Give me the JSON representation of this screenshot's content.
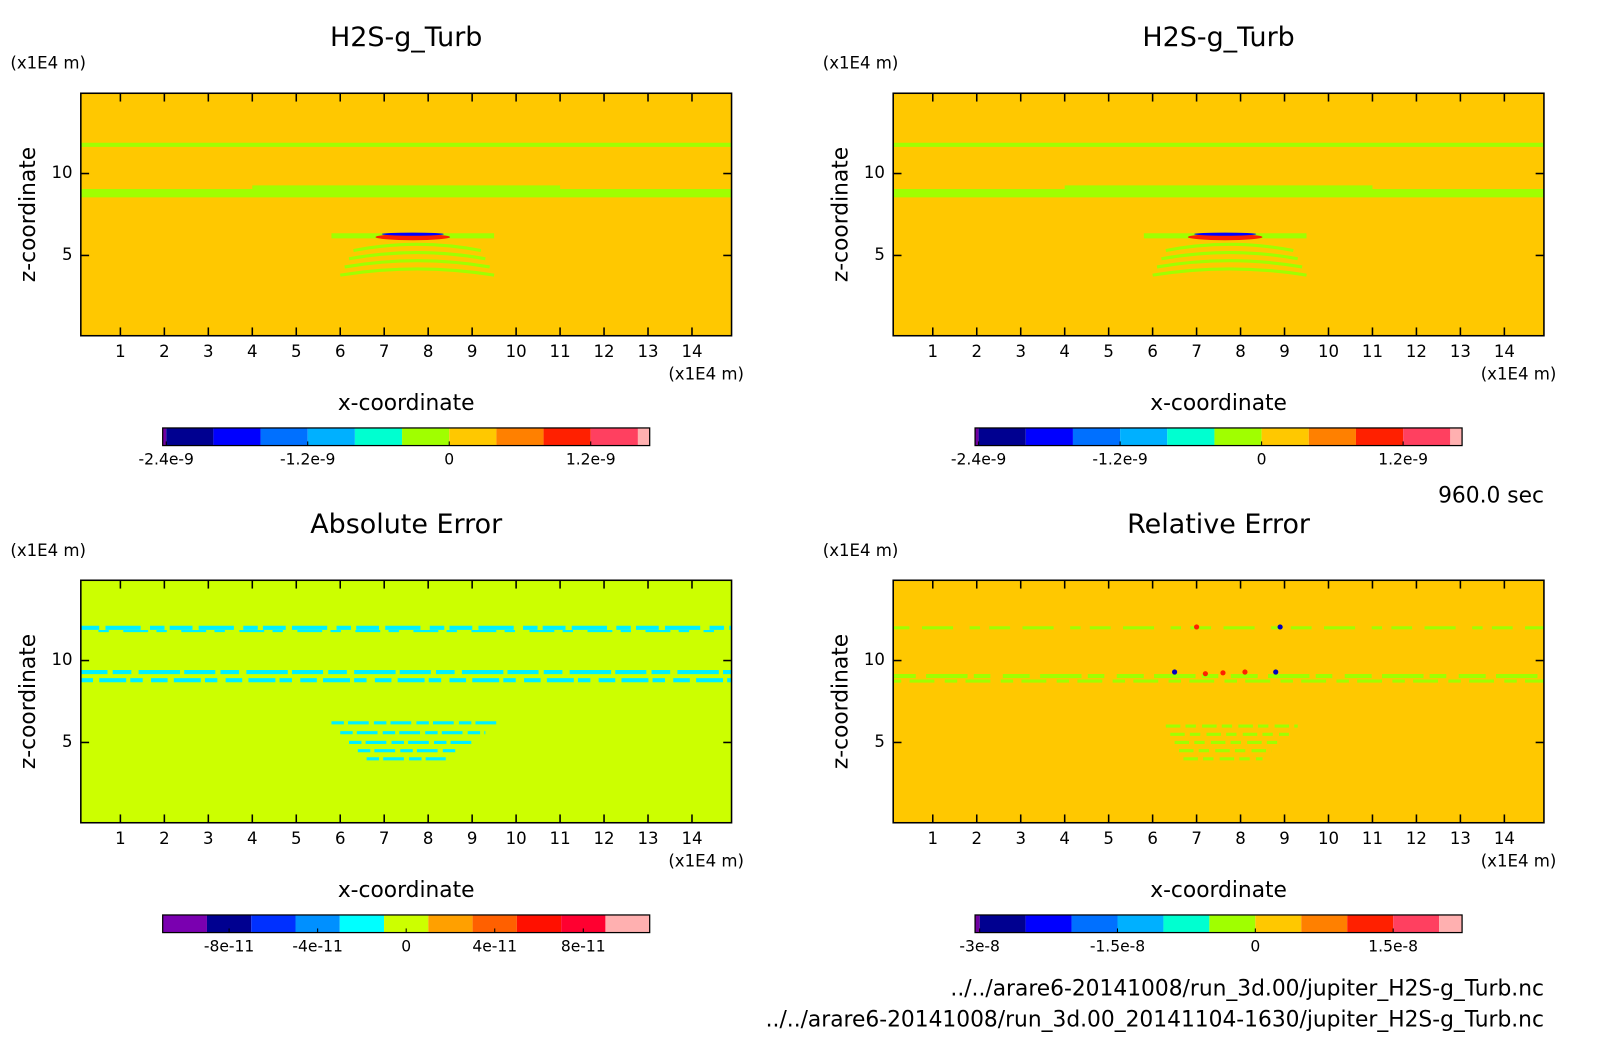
{
  "chart_data": [
    {
      "type": "contour",
      "title": "H2S-g_Turb",
      "xlabel": "x-coordinate",
      "ylabel": "z-coordinate",
      "xunit": "(x1E4 m)",
      "yunit": "(x1E4 m)",
      "xlim": [
        0.1,
        14.9
      ],
      "ylim": [
        0.1,
        14.9
      ],
      "xticks": [
        1,
        2,
        3,
        4,
        5,
        6,
        7,
        8,
        9,
        10,
        11,
        12,
        13,
        14
      ],
      "yticks": [
        5,
        10
      ],
      "background": "#ffc800",
      "colorbar": {
        "levels": [
          -2.43e-09,
          -2.4e-09,
          -2e-09,
          -1.6e-09,
          -1.2e-09,
          -8e-10,
          -4e-10,
          0,
          4e-10,
          8e-10,
          1.2e-09,
          1.6e-09,
          1.7e-09
        ],
        "colors": [
          "#7000a0",
          "#000090",
          "#0000ff",
          "#0070ff",
          "#00b0ff",
          "#00ffd0",
          "#a0ff00",
          "#ffc800",
          "#ff8000",
          "#ff2000",
          "#ff4060",
          "#ffb0b0"
        ],
        "ticks": [
          {
            "value": -2.4e-09,
            "label": "-2.4e-9"
          },
          {
            "value": -1.2e-09,
            "label": "-1.2e-9"
          },
          0,
          {
            "value": 1.2e-09,
            "label": "1.2e-9"
          }
        ]
      }
    },
    {
      "type": "contour",
      "title": "H2S-g_Turb",
      "xlabel": "x-coordinate",
      "ylabel": "z-coordinate",
      "xunit": "(x1E4 m)",
      "yunit": "(x1E4 m)",
      "xlim": [
        0.1,
        14.9
      ],
      "ylim": [
        0.1,
        14.9
      ],
      "xticks": [
        1,
        2,
        3,
        4,
        5,
        6,
        7,
        8,
        9,
        10,
        11,
        12,
        13,
        14
      ],
      "yticks": [
        5,
        10
      ],
      "background": "#ffc800",
      "colorbar": {
        "levels": [
          -2.43e-09,
          -2.4e-09,
          -2e-09,
          -1.6e-09,
          -1.2e-09,
          -8e-10,
          -4e-10,
          0,
          4e-10,
          8e-10,
          1.2e-09,
          1.6e-09,
          1.7e-09
        ],
        "colors": [
          "#7000a0",
          "#000090",
          "#0000ff",
          "#0070ff",
          "#00b0ff",
          "#00ffd0",
          "#a0ff00",
          "#ffc800",
          "#ff8000",
          "#ff2000",
          "#ff4060",
          "#ffb0b0"
        ],
        "ticks": [
          {
            "value": -2.4e-09,
            "label": "-2.4e-9"
          },
          {
            "value": -1.2e-09,
            "label": "-1.2e-9"
          },
          0,
          {
            "value": 1.2e-09,
            "label": "1.2e-9"
          }
        ]
      }
    },
    {
      "type": "contour",
      "title": "Absolute Error",
      "xlabel": "x-coordinate",
      "ylabel": "z-coordinate",
      "xunit": "(x1E4 m)",
      "yunit": "(x1E4 m)",
      "xlim": [
        0.1,
        14.9
      ],
      "ylim": [
        0.1,
        14.9
      ],
      "xticks": [
        1,
        2,
        3,
        4,
        5,
        6,
        7,
        8,
        9,
        10,
        11,
        12,
        13,
        14
      ],
      "yticks": [
        5,
        10
      ],
      "background": "#ccff00",
      "colorbar": {
        "levels": [
          -1.1e-10,
          -9e-11,
          -7e-11,
          -5e-11,
          -3e-11,
          -1e-11,
          1e-11,
          3e-11,
          5e-11,
          7e-11,
          9e-11,
          1.1e-10
        ],
        "colors": [
          "#7a00b0",
          "#000090",
          "#0030ff",
          "#0090ff",
          "#00ffff",
          "#ccff00",
          "#ffa000",
          "#ff6000",
          "#ff1000",
          "#ff0030",
          "#ffb0b0"
        ],
        "ticks": [
          {
            "value": -8e-11,
            "label": "-8e-11"
          },
          {
            "value": -4e-11,
            "label": "-4e-11"
          },
          0,
          {
            "value": 4e-11,
            "label": "4e-11"
          },
          {
            "value": 8e-11,
            "label": "8e-11"
          }
        ]
      }
    },
    {
      "type": "contour",
      "title": "Relative Error",
      "xlabel": "x-coordinate",
      "ylabel": "z-coordinate",
      "xunit": "(x1E4 m)",
      "yunit": "(x1E4 m)",
      "xlim": [
        0.1,
        14.9
      ],
      "ylim": [
        0.1,
        14.9
      ],
      "xticks": [
        1,
        2,
        3,
        4,
        5,
        6,
        7,
        8,
        9,
        10,
        11,
        12,
        13,
        14
      ],
      "yticks": [
        5,
        10
      ],
      "background": "#ffc800",
      "colorbar": {
        "levels": [
          -3.05e-08,
          -3e-08,
          -2.5e-08,
          -2e-08,
          -1.5e-08,
          -1e-08,
          -5e-09,
          0,
          5e-09,
          1e-08,
          1.5e-08,
          2e-08,
          2.25e-08
        ],
        "colors": [
          "#7000a0",
          "#000090",
          "#0000ff",
          "#0070ff",
          "#00b0ff",
          "#00ffd0",
          "#a0ff00",
          "#ffc800",
          "#ff8000",
          "#ff2000",
          "#ff4060",
          "#ffb0b0"
        ],
        "ticks": [
          {
            "value": -3e-08,
            "label": "-3e-8"
          },
          {
            "value": -1.5e-08,
            "label": "-1.5e-8"
          },
          0,
          {
            "value": 1.5e-08,
            "label": "1.5e-8"
          }
        ]
      }
    }
  ],
  "time_label": "960.0 sec",
  "files": [
    "../../arare6-20141008/run_3d.00/jupiter_H2S-g_Turb.nc",
    "../../arare6-20141008/run_3d.00_20141104-1630/jupiter_H2S-g_Turb.nc"
  ]
}
